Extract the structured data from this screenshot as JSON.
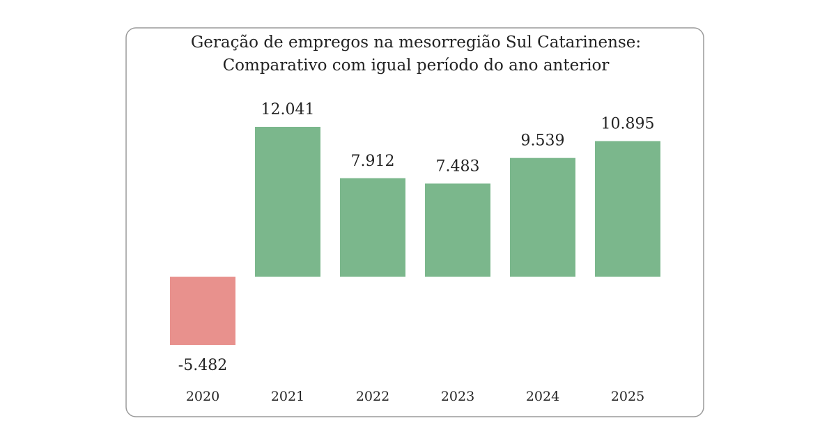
{
  "chart_data": {
    "type": "bar",
    "title": [
      "Geração de empregos na mesorregião Sul Catarinense:",
      "Comparativo com igual período do ano anterior"
    ],
    "categories": [
      "2020",
      "2021",
      "2022",
      "2023",
      "2024",
      "2025"
    ],
    "values": [
      -5482,
      12041,
      7912,
      7483,
      9539,
      10895
    ],
    "value_labels": [
      "-5.482",
      "12.041",
      "7.912",
      "7.483",
      "9.539",
      "10.895"
    ],
    "colors": [
      "#e8918d",
      "#7bb78c",
      "#7bb78c",
      "#7bb78c",
      "#7bb78c",
      "#7bb78c"
    ]
  }
}
